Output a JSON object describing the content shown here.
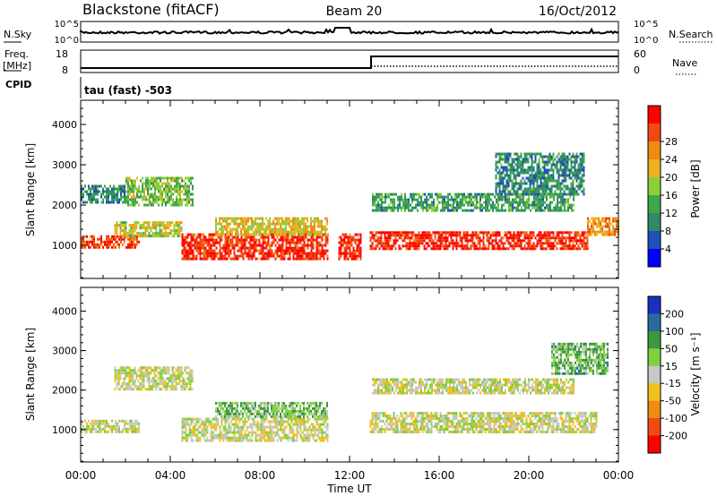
{
  "header": {
    "station": "Blackstone (fitACF)",
    "beam": "Beam 20",
    "date": "16/Oct/2012"
  },
  "nsky_panel": {
    "left_label": "N.Sky",
    "left_ticks": [
      "10^5",
      "10^0"
    ],
    "right_ticks": [
      "10^5",
      "10^0"
    ],
    "right_label": "N.Search"
  },
  "freq_panel": {
    "left_label_1": "Freq.",
    "left_label_2": "[MHz]",
    "left_ticks": [
      "18",
      "8"
    ],
    "right_ticks": [
      "60",
      "0"
    ],
    "right_label": "Nave"
  },
  "cpid": {
    "label": "CPID",
    "value": "tau (fast) -503"
  },
  "chart_data": [
    {
      "type": "heatmap",
      "title": "",
      "ylabel": "Slant Range [km]",
      "xlabel": "",
      "xlim": [
        0,
        24
      ],
      "ylim": [
        180,
        4600
      ],
      "yticks": [
        "1000",
        "2000",
        "3000",
        "4000"
      ],
      "xticks": [
        "00:00",
        "04:00",
        "08:00",
        "12:00",
        "16:00",
        "20:00",
        "00:00"
      ],
      "colorbar": {
        "label": "Power [dB]",
        "ticks": [
          "4",
          "8",
          "12",
          "16",
          "20",
          "24",
          "28"
        ],
        "colors": [
          "#0000ff",
          "#1f4fb8",
          "#2f8a6a",
          "#3fa84a",
          "#8ccf3a",
          "#f0b020",
          "#f08a10",
          "#f04a10",
          "#ff0000"
        ]
      },
      "regions": [
        {
          "t0": 0.0,
          "t1": 2.6,
          "r0": 950,
          "r1": 1250,
          "level": 0.85
        },
        {
          "t0": 1.5,
          "t1": 4.5,
          "r0": 1250,
          "r1": 1600,
          "level": 0.55
        },
        {
          "t0": 2.0,
          "t1": 5.0,
          "r0": 2000,
          "r1": 2700,
          "level": 0.45
        },
        {
          "t0": 0.0,
          "t1": 2.0,
          "r0": 2100,
          "r1": 2500,
          "level": 0.3
        },
        {
          "t0": 4.5,
          "t1": 11.0,
          "r0": 700,
          "r1": 1300,
          "level": 0.9
        },
        {
          "t0": 6.0,
          "t1": 11.0,
          "r0": 1300,
          "r1": 1700,
          "level": 0.6
        },
        {
          "t0": 11.5,
          "t1": 12.5,
          "r0": 650,
          "r1": 1300,
          "level": 0.9
        },
        {
          "t0": 12.9,
          "t1": 22.6,
          "r0": 900,
          "r1": 1350,
          "level": 0.9
        },
        {
          "t0": 22.6,
          "t1": 24.0,
          "r0": 1300,
          "r1": 1700,
          "level": 0.7
        },
        {
          "t0": 13.0,
          "t1": 22.0,
          "r0": 1900,
          "r1": 2300,
          "level": 0.35
        },
        {
          "t0": 18.5,
          "t1": 22.5,
          "r0": 2300,
          "r1": 3300,
          "level": 0.3
        }
      ]
    },
    {
      "type": "heatmap",
      "title": "",
      "ylabel": "Slant Range [km]",
      "xlabel": "Time UT",
      "xlim": [
        0,
        24
      ],
      "ylim": [
        180,
        4600
      ],
      "yticks": [
        "1000",
        "2000",
        "3000",
        "4000"
      ],
      "xticks": [
        "00:00",
        "04:00",
        "08:00",
        "12:00",
        "16:00",
        "20:00",
        "00:00"
      ],
      "colorbar": {
        "label": "Velocity [m s⁻¹]",
        "ticks": [
          "200",
          "100",
          "50",
          "15",
          "-15",
          "-50",
          "-100",
          "-200"
        ],
        "colors": [
          "#1a30c0",
          "#2a6aa0",
          "#3a9a40",
          "#80d040",
          "#c8c8c8",
          "#f0c020",
          "#f08a10",
          "#f04a10",
          "#ff0000"
        ]
      },
      "regions": [
        {
          "t0": 0.0,
          "t1": 2.6,
          "r0": 950,
          "r1": 1250,
          "level": 0.5
        },
        {
          "t0": 1.5,
          "t1": 5.0,
          "r0": 2000,
          "r1": 2600,
          "level": 0.5
        },
        {
          "t0": 4.5,
          "t1": 11.0,
          "r0": 750,
          "r1": 1300,
          "level": 0.5
        },
        {
          "t0": 6.0,
          "t1": 11.0,
          "r0": 1300,
          "r1": 1700,
          "level": 0.62
        },
        {
          "t0": 12.9,
          "t1": 23.0,
          "r0": 950,
          "r1": 1450,
          "level": 0.5
        },
        {
          "t0": 13.0,
          "t1": 22.0,
          "r0": 1900,
          "r1": 2300,
          "level": 0.5
        },
        {
          "t0": 21.0,
          "t1": 23.5,
          "r0": 2400,
          "r1": 3200,
          "level": 0.65
        }
      ]
    }
  ]
}
